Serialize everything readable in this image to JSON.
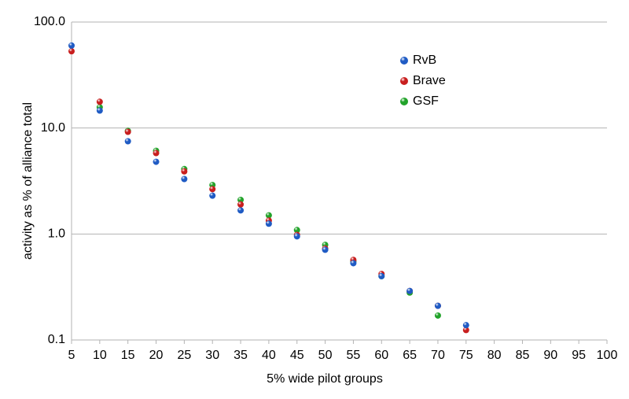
{
  "chart_data": {
    "type": "scatter",
    "x_label": "5% wide pilot groups",
    "y_label": "activity as % of alliance total",
    "x": [
      5,
      10,
      15,
      20,
      25,
      30,
      35,
      40,
      45,
      50,
      55,
      60,
      65,
      70,
      75
    ],
    "series": [
      {
        "name": "RvB",
        "color": "#1f5bc4",
        "values": [
          60,
          14.6,
          7.5,
          4.8,
          3.3,
          2.3,
          1.67,
          1.25,
          0.95,
          0.71,
          0.53,
          0.4,
          0.29,
          0.21,
          0.138
        ]
      },
      {
        "name": "Brave",
        "color": "#c81e1e",
        "values": [
          53,
          17.7,
          9.2,
          5.8,
          3.9,
          2.65,
          1.9,
          1.34,
          0.98,
          0.73,
          0.57,
          0.42,
          0.29,
          0.21,
          0.124
        ]
      },
      {
        "name": "GSF",
        "color": "#22a32a",
        "values": [
          null,
          15.7,
          9.4,
          6.1,
          4.1,
          2.9,
          2.1,
          1.5,
          1.09,
          0.79,
          0.55,
          0.4,
          0.28,
          0.17,
          null
        ]
      }
    ],
    "xlim": [
      5,
      100
    ],
    "xticks": [
      5,
      10,
      15,
      20,
      25,
      30,
      35,
      40,
      45,
      50,
      55,
      60,
      65,
      70,
      75,
      80,
      85,
      90,
      95,
      100
    ],
    "ylim": [
      0.1,
      100
    ],
    "yticks": [
      0.1,
      {
        "value": 1,
        "label": "1.0"
      },
      {
        "value": 10,
        "label": "10.0"
      },
      {
        "value": 100,
        "label": "100.0"
      }
    ],
    "y_log": true,
    "grid": true,
    "legend_position": "upper-right"
  }
}
